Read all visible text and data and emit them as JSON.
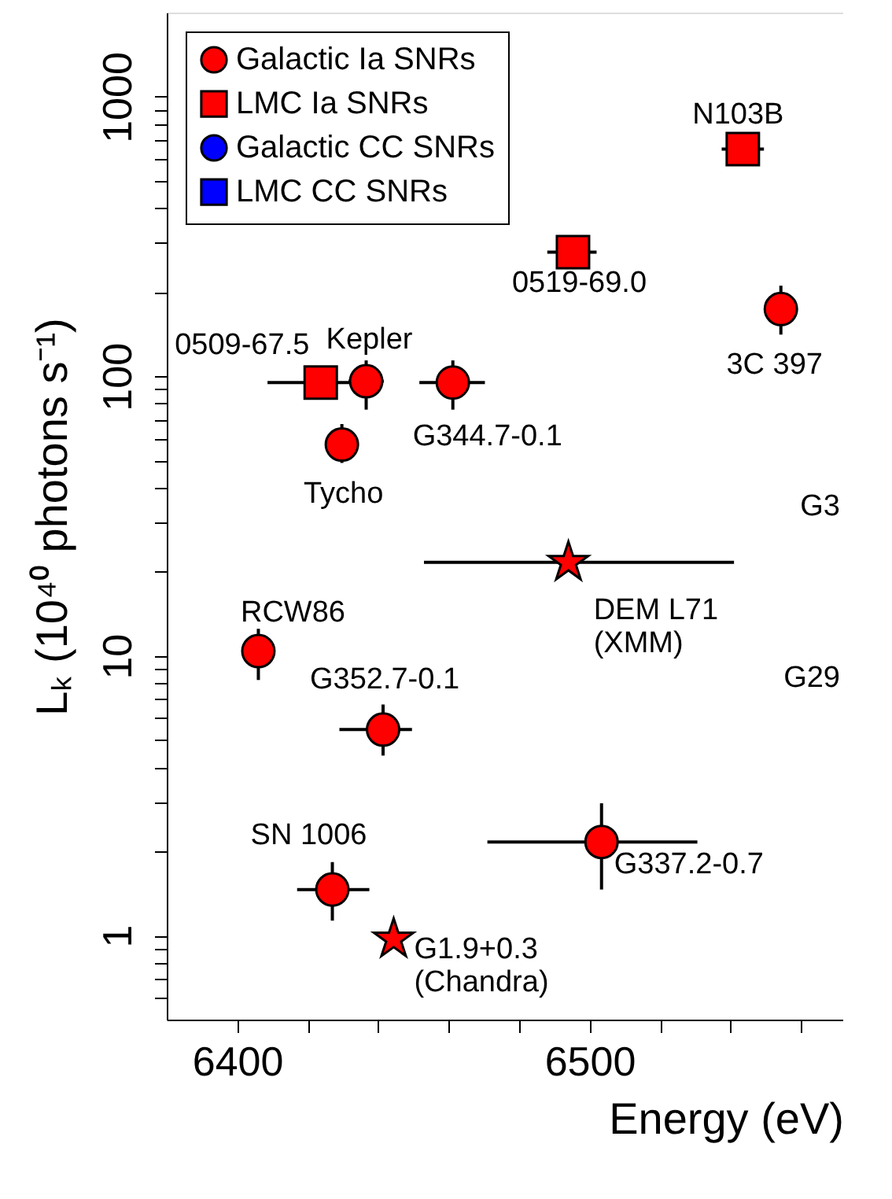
{
  "chart_data": {
    "type": "scatter",
    "xlabel": "Energy (eV)",
    "ylabel": "Lₖ (10⁴⁰ photons s⁻¹)",
    "log": "y",
    "grid": false,
    "legend": "top left",
    "xlim": [
      6380,
      6572
    ],
    "xticks": [
      6400,
      {
        "value": 6420,
        "label": null
      },
      {
        "value": 6440,
        "label": null
      },
      {
        "value": 6460,
        "label": null
      },
      {
        "value": 6480,
        "label": null
      },
      6500,
      {
        "value": 6520,
        "label": null
      },
      {
        "value": 6540,
        "label": null
      },
      {
        "value": 6560,
        "label": null
      }
    ],
    "ylim": [
      0.5,
      2000
    ],
    "yticks": [
      {
        "value": 0.6,
        "label": null
      },
      {
        "value": 0.7,
        "label": null
      },
      {
        "value": 0.8,
        "label": null
      },
      {
        "value": 0.9,
        "label": null
      },
      1,
      {
        "value": 2,
        "label": null
      },
      {
        "value": 3,
        "label": null
      },
      {
        "value": 4,
        "label": null
      },
      {
        "value": 5,
        "label": null
      },
      {
        "value": 6,
        "label": null
      },
      {
        "value": 7,
        "label": null
      },
      {
        "value": 8,
        "label": null
      },
      {
        "value": 9,
        "label": null
      },
      10,
      {
        "value": 20,
        "label": null
      },
      {
        "value": 30,
        "label": null
      },
      {
        "value": 40,
        "label": null
      },
      {
        "value": 50,
        "label": null
      },
      {
        "value": 60,
        "label": null
      },
      {
        "value": 70,
        "label": null
      },
      {
        "value": 80,
        "label": null
      },
      {
        "value": 90,
        "label": null
      },
      100,
      {
        "value": 200,
        "label": null
      },
      {
        "value": 300,
        "label": null
      },
      {
        "value": 400,
        "label": null
      },
      {
        "value": 500,
        "label": null
      },
      {
        "value": 600,
        "label": null
      },
      {
        "value": 700,
        "label": null
      },
      {
        "value": 800,
        "label": null
      },
      {
        "value": 900,
        "label": null
      },
      1000
    ],
    "series": [
      {
        "name": "Galactic Ia SNRs",
        "color": "#ff0000",
        "marker": "circle",
        "x": [
          6436.6,
          6429.7,
          6461.2,
          6554.3,
          6406,
          6441.4,
          6427,
          6503.4
        ],
        "values": [
          96,
          57,
          95,
          174,
          10.4,
          5.45,
          1.46,
          2.16
        ],
        "xerrors": [
          5,
          null,
          [
            6451.7,
            6470.3
          ],
          null,
          null,
          [
            6429,
            6449.6
          ],
          [
            6417,
            6437.5
          ],
          [
            6471,
            6530.6
          ]
        ],
        "errors": [
          [
            76,
            114
          ],
          [
            49,
            67.5
          ],
          [
            76,
            114
          ],
          [
            141,
            211
          ],
          [
            8.2,
            12.5
          ],
          [
            4.4,
            6.7
          ],
          [
            1.13,
            1.83
          ],
          [
            1.46,
            2.97
          ]
        ]
      },
      {
        "name": "LMC Ia SNRs",
        "color": "#ff0000",
        "marker": "square",
        "x": [
          6423.7,
          6495.3,
          6543.5
        ],
        "values": [
          95,
          278,
          650
        ],
        "xerrors": [
          [
            6408.6,
            6433.6
          ],
          [
            6488,
            6502
          ],
          [
            6537.5,
            6549.5
          ]
        ]
      },
      {
        "name": "Galactic CC SNRs",
        "color": "#0000ff",
        "marker": "circle"
      },
      {
        "name": "LMC CC SNRs",
        "color": "#0000ff",
        "marker": "square"
      },
      {
        "color": "#ff0000",
        "marker": "star",
        "x": [
          6494,
          6444.4
        ],
        "values": [
          21.6,
          0.97
        ],
        "xerrors": [
          [
            6453,
            6541
          ],
          null
        ]
      }
    ],
    "annotations": [
      {
        "text": "0509-67.5",
        "x": 6423.7,
        "y": 95
      },
      {
        "text": "Kepler",
        "x": 6436.6,
        "y": 96
      },
      {
        "text": "Tycho",
        "x": 6429.7,
        "y": 57
      },
      {
        "text": "G344.7-0.1",
        "x": 6461.2,
        "y": 95
      },
      {
        "text": "0519-69.0",
        "x": 6495.3,
        "y": 278
      },
      {
        "text": "N103B",
        "x": 6543.5,
        "y": 650
      },
      {
        "text": "3C 397",
        "x": 6554.3,
        "y": 174
      },
      {
        "text": "DEM L71\n(XMM)",
        "x": 6494,
        "y": 21.6
      },
      {
        "text": "RCW86",
        "x": 6406,
        "y": 10.4
      },
      {
        "text": "G352.7-0.1",
        "x": 6441.4,
        "y": 5.45
      },
      {
        "text": "SN 1006",
        "x": 6427,
        "y": 1.46
      },
      {
        "text": "G1.9+0.3\n(Chandra)",
        "x": 6444.4,
        "y": 0.97
      },
      {
        "text": "G337.2-0.7",
        "x": 6503.4,
        "y": 2.16
      },
      "G3",
      "G29"
    ]
  }
}
